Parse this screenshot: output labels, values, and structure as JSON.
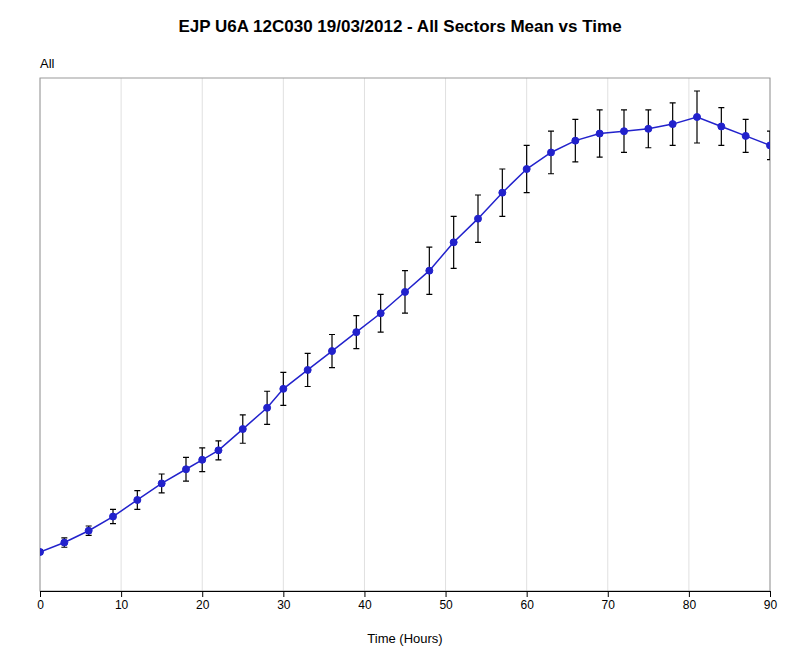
{
  "chart_data": {
    "type": "line",
    "title": "EJP U6A 12C030 19/03/2012 - All Sectors Mean vs Time",
    "xlabel": "Time (Hours)",
    "ylabel": "All",
    "x": [
      0,
      3,
      6,
      9,
      12,
      15,
      18,
      20,
      22,
      25,
      28,
      30,
      33,
      36,
      39,
      42,
      45,
      48,
      51,
      54,
      57,
      60,
      63,
      66,
      69,
      72,
      75,
      78,
      81,
      84,
      87,
      90
    ],
    "series": [
      {
        "color": "#2222CC",
        "marker": "circle",
        "line_style": "solid",
        "values": [
          0.03,
          0.07,
          0.12,
          0.18,
          0.25,
          0.32,
          0.38,
          0.42,
          0.46,
          0.55,
          0.64,
          0.72,
          0.8,
          0.88,
          0.96,
          1.04,
          1.13,
          1.22,
          1.34,
          1.44,
          1.55,
          1.65,
          1.72,
          1.77,
          1.8,
          1.81,
          1.82,
          1.84,
          1.87,
          1.83,
          1.79,
          1.75
        ],
        "errors": [
          0.01,
          0.02,
          0.02,
          0.03,
          0.04,
          0.04,
          0.05,
          0.05,
          0.04,
          0.06,
          0.07,
          0.07,
          0.07,
          0.07,
          0.07,
          0.08,
          0.09,
          0.1,
          0.11,
          0.1,
          0.1,
          0.1,
          0.09,
          0.09,
          0.1,
          0.09,
          0.08,
          0.09,
          0.11,
          0.08,
          0.07,
          0.06
        ]
      }
    ],
    "xlim": [
      0,
      90
    ],
    "xticks": [
      0,
      10,
      20,
      30,
      40,
      50,
      60,
      70,
      80,
      90
    ],
    "ylim": [
      -0.135,
      2.035
    ],
    "grid": true,
    "tick_labels": "x"
  }
}
